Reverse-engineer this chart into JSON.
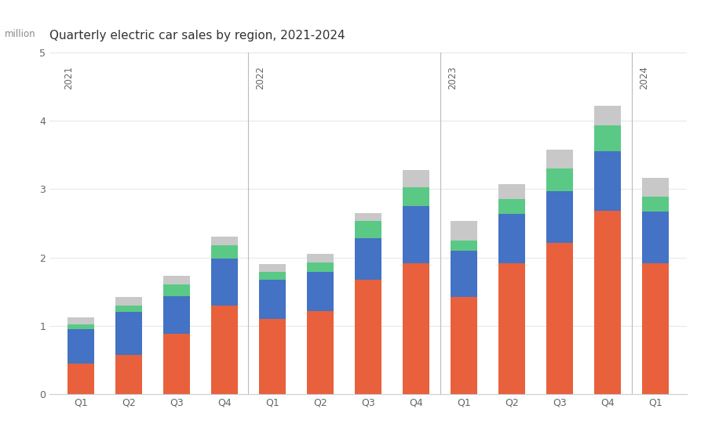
{
  "title": "Quarterly electric car sales by region, 2021-2024",
  "ylabel": "million",
  "ylim": [
    0,
    5
  ],
  "yticks": [
    0,
    1,
    2,
    3,
    4,
    5
  ],
  "years": [
    "2021",
    "2022",
    "2023",
    "2024"
  ],
  "quarters": [
    "Q1",
    "Q2",
    "Q3",
    "Q4"
  ],
  "colors": {
    "china": "#E8613C",
    "europe": "#4472C4",
    "usa": "#5AC985",
    "rest": "#C8C8C8"
  },
  "data": {
    "china": [
      0.45,
      0.58,
      0.88,
      1.3,
      1.1,
      1.22,
      1.68,
      1.92,
      1.42,
      1.92,
      2.22,
      2.68,
      1.92
    ],
    "europe": [
      0.5,
      0.62,
      0.55,
      0.68,
      0.57,
      0.57,
      0.6,
      0.83,
      0.68,
      0.72,
      0.75,
      0.88,
      0.75
    ],
    "usa": [
      0.07,
      0.1,
      0.18,
      0.2,
      0.12,
      0.14,
      0.25,
      0.28,
      0.15,
      0.22,
      0.33,
      0.38,
      0.22
    ],
    "rest": [
      0.1,
      0.12,
      0.12,
      0.13,
      0.12,
      0.12,
      0.12,
      0.25,
      0.28,
      0.22,
      0.28,
      0.28,
      0.28
    ]
  },
  "bar_width": 0.55,
  "grid_color": "#E8E8E8",
  "year_line_color": "#BBBBBB",
  "title_fontsize": 11,
  "ylabel_fontsize": 8.5,
  "tick_fontsize": 9,
  "year_fontsize": 8.5
}
